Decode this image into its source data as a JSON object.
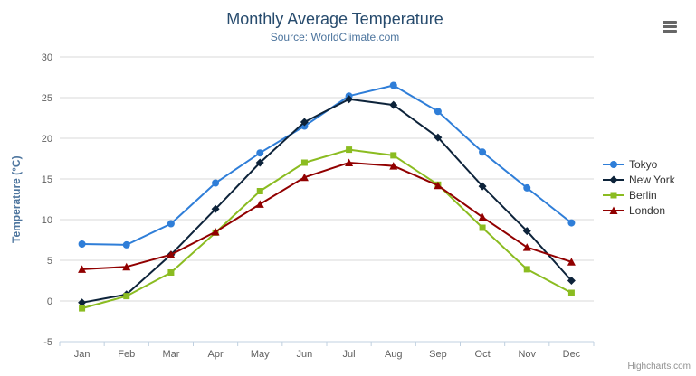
{
  "header": {
    "export_menu_icon": "hamburger-menu"
  },
  "credit": "Highcharts.com",
  "chart_data": {
    "type": "line",
    "title": "Monthly Average Temperature",
    "subtitle": "Source: WorldClimate.com",
    "categories": [
      "Jan",
      "Feb",
      "Mar",
      "Apr",
      "May",
      "Jun",
      "Jul",
      "Aug",
      "Sep",
      "Oct",
      "Nov",
      "Dec"
    ],
    "xlabel": "",
    "ylabel": "Temperature (°C)",
    "ylim": [
      -5,
      30
    ],
    "y_ticks": [
      -5,
      0,
      5,
      10,
      15,
      20,
      25,
      30
    ],
    "grid": true,
    "legend_position": "right-middle",
    "colors": {
      "grid": "#d8d8d8",
      "axis_line": "#c0d0e0",
      "axis_labels": "#606060",
      "title": "#274b6d",
      "subtitle": "#4d759e",
      "y_axis_title": "#4d759e",
      "legend_text": "#333333",
      "credit": "#909090"
    },
    "series": [
      {
        "name": "Tokyo",
        "color": "#2f7ed8",
        "marker": "circle",
        "values": [
          7.0,
          6.9,
          9.5,
          14.5,
          18.2,
          21.5,
          25.2,
          26.5,
          23.3,
          18.3,
          13.9,
          9.6
        ]
      },
      {
        "name": "New York",
        "color": "#0d233a",
        "marker": "diamond",
        "values": [
          -0.2,
          0.8,
          5.7,
          11.3,
          17.0,
          22.0,
          24.8,
          24.1,
          20.1,
          14.1,
          8.6,
          2.5
        ]
      },
      {
        "name": "Berlin",
        "color": "#8bbc21",
        "marker": "square",
        "values": [
          -0.9,
          0.6,
          3.5,
          8.4,
          13.5,
          17.0,
          18.6,
          17.9,
          14.3,
          9.0,
          3.9,
          1.0
        ]
      },
      {
        "name": "London",
        "color": "#910000",
        "marker": "triangle",
        "values": [
          3.9,
          4.2,
          5.7,
          8.5,
          11.9,
          15.2,
          17.0,
          16.6,
          14.2,
          10.3,
          6.6,
          4.8
        ]
      }
    ]
  }
}
